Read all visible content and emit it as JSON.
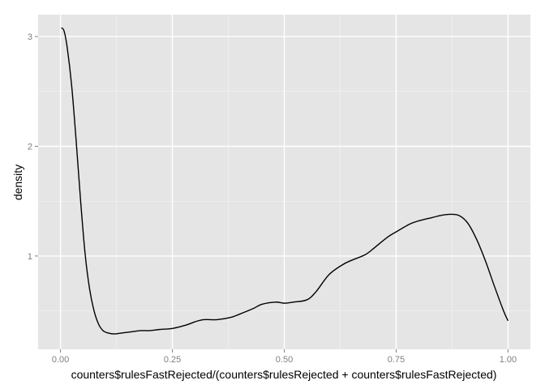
{
  "chart_data": {
    "type": "line",
    "xlabel": "counters$rulesFastRejected/(counters$rulesRejected + counters$rulesFastRejected)",
    "ylabel": "density",
    "xlim": [
      -0.05,
      1.05
    ],
    "ylim": [
      0.15,
      3.2
    ],
    "x_ticks": [
      {
        "value": 0.0,
        "label": "0.00"
      },
      {
        "value": 0.25,
        "label": "0.25"
      },
      {
        "value": 0.5,
        "label": "0.50"
      },
      {
        "value": 0.75,
        "label": "0.75"
      },
      {
        "value": 1.0,
        "label": "1.00"
      }
    ],
    "y_ticks": [
      {
        "value": 1,
        "label": "1"
      },
      {
        "value": 2,
        "label": "2"
      },
      {
        "value": 3,
        "label": "3"
      }
    ],
    "grid": true,
    "legend": "none",
    "colors": {
      "panel_background": "#e5e5e5",
      "grid_major": "#ffffff",
      "grid_minor": "#f2f2f2",
      "line": "#000000",
      "tick_label": "#7f7f7f"
    },
    "series": [
      {
        "x": [
          0.002,
          0.008,
          0.015,
          0.025,
          0.035,
          0.045,
          0.055,
          0.065,
          0.075,
          0.085,
          0.095,
          0.105,
          0.12,
          0.14,
          0.16,
          0.18,
          0.2,
          0.22,
          0.25,
          0.28,
          0.3,
          0.32,
          0.35,
          0.38,
          0.4,
          0.43,
          0.45,
          0.48,
          0.5,
          0.52,
          0.55,
          0.57,
          0.6,
          0.63,
          0.65,
          0.68,
          0.7,
          0.73,
          0.75,
          0.78,
          0.8,
          0.83,
          0.85,
          0.87,
          0.89,
          0.91,
          0.93,
          0.95,
          0.97,
          0.99,
          1.0
        ],
        "y": [
          3.08,
          3.05,
          2.9,
          2.55,
          2.05,
          1.5,
          1.02,
          0.7,
          0.5,
          0.38,
          0.32,
          0.3,
          0.29,
          0.3,
          0.31,
          0.32,
          0.32,
          0.33,
          0.34,
          0.37,
          0.4,
          0.42,
          0.42,
          0.44,
          0.47,
          0.52,
          0.56,
          0.58,
          0.57,
          0.58,
          0.6,
          0.67,
          0.83,
          0.92,
          0.96,
          1.01,
          1.07,
          1.17,
          1.22,
          1.29,
          1.32,
          1.35,
          1.37,
          1.38,
          1.37,
          1.3,
          1.15,
          0.95,
          0.72,
          0.5,
          0.41
        ]
      }
    ]
  }
}
